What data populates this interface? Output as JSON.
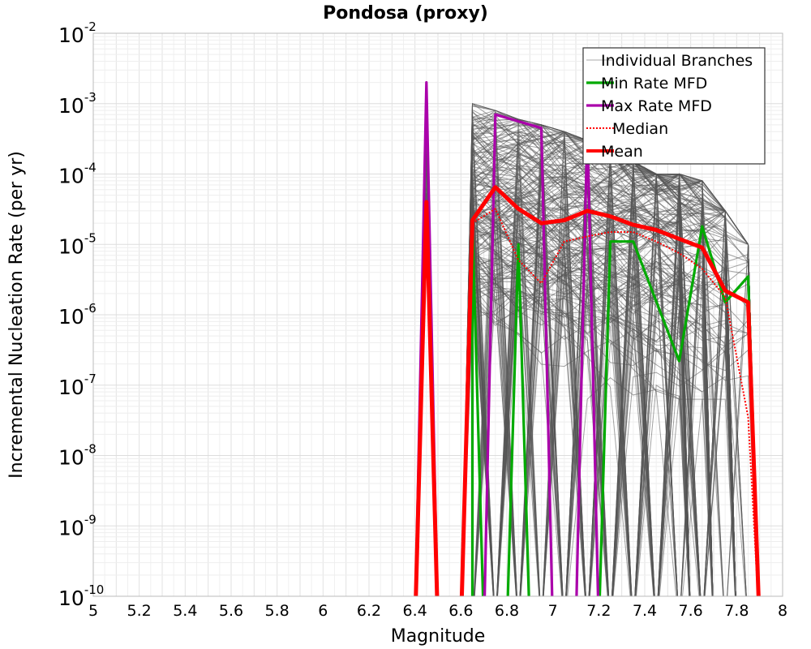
{
  "chart_data": {
    "type": "line",
    "title": "Pondosa (proxy)",
    "xlabel": "Magnitude",
    "ylabel": "Incremental Nucleation Rate (per yr)",
    "xlim": [
      5,
      8
    ],
    "ylim": [
      1e-10,
      0.01
    ],
    "y_scale": "log",
    "grid": true,
    "legend_position": "top-right",
    "x_ticks": [
      "5",
      "5.2",
      "5.4",
      "5.6",
      "5.8",
      "6",
      "6.2",
      "6.4",
      "6.6",
      "6.8",
      "7",
      "7.2",
      "7.4",
      "7.6",
      "7.8",
      "8"
    ],
    "y_ticks": [
      {
        "base": "10",
        "exp": "-10"
      },
      {
        "base": "10",
        "exp": "-9"
      },
      {
        "base": "10",
        "exp": "-8"
      },
      {
        "base": "10",
        "exp": "-7"
      },
      {
        "base": "10",
        "exp": "-6"
      },
      {
        "base": "10",
        "exp": "-5"
      },
      {
        "base": "10",
        "exp": "-4"
      },
      {
        "base": "10",
        "exp": "-3"
      },
      {
        "base": "10",
        "exp": "-2"
      }
    ],
    "series": [
      {
        "name": "Individual Branches",
        "color": "#555555",
        "style": "thin",
        "magnitudes": [
          6.45,
          6.65,
          6.75,
          6.85,
          6.95,
          7.05,
          7.15,
          7.25,
          7.35,
          7.45,
          7.55,
          7.65,
          7.75,
          7.85
        ],
        "envelope_max": [
          0.002,
          0.001,
          0.0008,
          0.0006,
          0.0005,
          0.0004,
          0.0003,
          0.0002,
          0.00015,
          0.0001,
          0.0001,
          8e-05,
          3e-05,
          1e-05
        ]
      },
      {
        "name": "Min Rate MFD",
        "color": "#00aa00",
        "style": "solid",
        "points": [
          [
            6.65,
            1e-12
          ],
          [
            6.65,
            2e-05
          ],
          [
            6.7,
            1e-12
          ],
          [
            6.8,
            1e-12
          ],
          [
            6.85,
            1e-05
          ],
          [
            6.9,
            1e-12
          ],
          [
            7.2,
            1e-12
          ],
          [
            7.25,
            1.1e-05
          ],
          [
            7.35,
            1.1e-05
          ],
          [
            7.55,
            2.2e-07
          ],
          [
            7.65,
            1.8e-05
          ],
          [
            7.75,
            1.5e-06
          ],
          [
            7.85,
            3.5e-06
          ],
          [
            7.9,
            1e-12
          ]
        ]
      },
      {
        "name": "Max Rate MFD",
        "color": "#aa00aa",
        "style": "solid",
        "points": [
          [
            6.4,
            1e-12
          ],
          [
            6.45,
            0.002
          ],
          [
            6.5,
            1e-12
          ],
          [
            6.7,
            1e-12
          ],
          [
            6.75,
            0.0007
          ],
          [
            6.95,
            0.00045
          ],
          [
            7.0,
            1e-12
          ],
          [
            7.1,
            1e-12
          ],
          [
            7.15,
            0.0005
          ],
          [
            7.2,
            1e-12
          ]
        ]
      },
      {
        "name": "Median",
        "color": "#ff0000",
        "style": "dotted",
        "points": [
          [
            6.6,
            1e-12
          ],
          [
            6.65,
            2e-05
          ],
          [
            6.75,
            3.2e-05
          ],
          [
            6.85,
            6e-06
          ],
          [
            6.95,
            2.8e-06
          ],
          [
            7.05,
            1.1e-05
          ],
          [
            7.15,
            1.3e-05
          ],
          [
            7.25,
            1.5e-05
          ],
          [
            7.35,
            1.5e-05
          ],
          [
            7.45,
            1.1e-05
          ],
          [
            7.55,
            7.5e-06
          ],
          [
            7.65,
            4.5e-06
          ],
          [
            7.75,
            1.8e-06
          ],
          [
            7.85,
            3.5e-08
          ],
          [
            7.9,
            1e-12
          ]
        ]
      },
      {
        "name": "Mean",
        "color": "#ff0000",
        "style": "thick",
        "points": [
          [
            6.4,
            1e-12
          ],
          [
            6.45,
            4e-05
          ],
          [
            6.5,
            1e-12
          ],
          [
            6.6,
            1e-12
          ],
          [
            6.65,
            2.2e-05
          ],
          [
            6.75,
            6.5e-05
          ],
          [
            6.85,
            3.2e-05
          ],
          [
            6.95,
            2e-05
          ],
          [
            7.05,
            2.2e-05
          ],
          [
            7.15,
            3e-05
          ],
          [
            7.25,
            2.5e-05
          ],
          [
            7.35,
            1.9e-05
          ],
          [
            7.45,
            1.6e-05
          ],
          [
            7.55,
            1.2e-05
          ],
          [
            7.65,
            9e-06
          ],
          [
            7.75,
            2.2e-06
          ],
          [
            7.85,
            1.5e-06
          ],
          [
            7.9,
            1e-12
          ]
        ]
      }
    ]
  }
}
